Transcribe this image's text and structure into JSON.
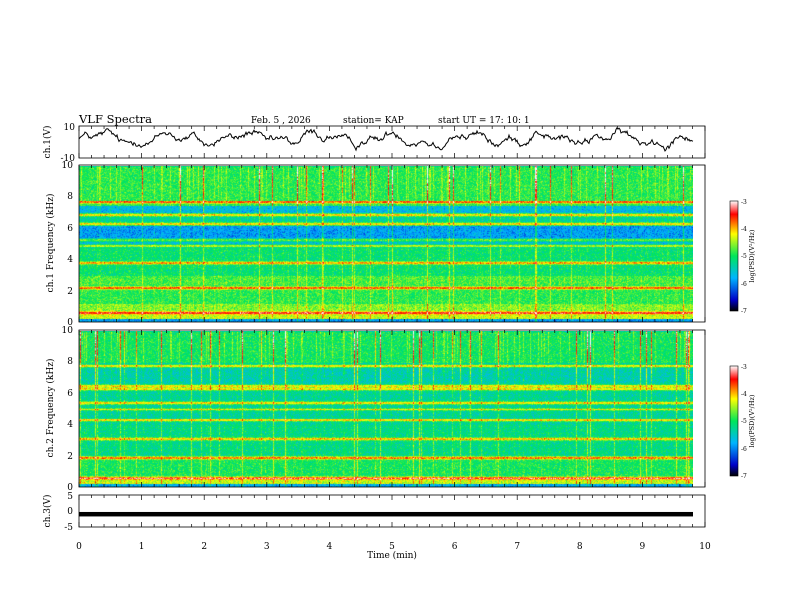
{
  "header": {
    "title": "VLF Spectra",
    "date": "Feb. 5 , 2026",
    "station": "station= KAP",
    "start_ut": "start UT =  17: 10: 1"
  },
  "chart_data": [
    {
      "type": "line",
      "panel": "ch1-waveform",
      "ylabel": "ch.1(V)",
      "ylim": [
        -10,
        10
      ],
      "yticks": [
        "10",
        "-10"
      ],
      "xlim": [
        0,
        10
      ],
      "series": [
        {
          "name": "ch.1",
          "mean": 2,
          "amplitude": 5.5
        }
      ]
    },
    {
      "type": "heatmap",
      "panel": "ch1-spectrogram",
      "ylabel": "ch.1 Frequency (kHz)",
      "ylim": [
        0,
        10
      ],
      "yticks": [
        "0",
        "2",
        "4",
        "6",
        "8",
        "10"
      ],
      "xlim": [
        0,
        9.85
      ],
      "base_level": -5.2,
      "bands": [
        {
          "f0": 0.0,
          "f1": 0.2,
          "level": -5.9
        },
        {
          "f0": 0.2,
          "f1": 0.5,
          "level": -4.4
        },
        {
          "f0": 0.5,
          "f1": 1.2,
          "level": -4.6
        },
        {
          "f0": 1.2,
          "f1": 2.4,
          "level": -4.9
        },
        {
          "f0": 2.4,
          "f1": 3.0,
          "level": -4.8
        },
        {
          "f0": 3.0,
          "f1": 4.8,
          "level": -5.1
        },
        {
          "f0": 4.8,
          "f1": 5.2,
          "level": -5.6
        },
        {
          "f0": 5.2,
          "f1": 6.2,
          "level": -5.9
        },
        {
          "f0": 6.2,
          "f1": 7.0,
          "level": -5.3
        },
        {
          "f0": 7.0,
          "f1": 7.5,
          "level": -5.7
        },
        {
          "f0": 7.5,
          "f1": 10.0,
          "level": -4.9
        }
      ],
      "lines_khz": [
        0.6,
        2.2,
        3.8,
        4.9,
        5.3,
        6.3,
        6.9,
        7.7
      ]
    },
    {
      "type": "heatmap",
      "panel": "ch2-spectrogram",
      "ylabel": "ch.2 Frequency (kHz)",
      "ylim": [
        0,
        10
      ],
      "yticks": [
        "0",
        "2",
        "4",
        "6",
        "8",
        "10"
      ],
      "xlim": [
        0,
        9.85
      ],
      "base_level": -5.3,
      "bands": [
        {
          "f0": 0.0,
          "f1": 0.25,
          "level": -5.8
        },
        {
          "f0": 0.25,
          "f1": 0.6,
          "level": -4.4
        },
        {
          "f0": 0.6,
          "f1": 2.0,
          "level": -5.0
        },
        {
          "f0": 2.0,
          "f1": 4.0,
          "level": -5.2
        },
        {
          "f0": 4.0,
          "f1": 6.5,
          "level": -5.3
        },
        {
          "f0": 6.5,
          "f1": 8.0,
          "level": -5.4
        },
        {
          "f0": 8.0,
          "f1": 10.0,
          "level": -5.0
        }
      ],
      "lines_khz": [
        0.6,
        1.9,
        3.1,
        4.3,
        5.0,
        5.4,
        6.3,
        6.5,
        7.8
      ]
    },
    {
      "type": "line",
      "panel": "ch3-waveform",
      "ylabel": "ch.3(V)",
      "ylim": [
        -5,
        5
      ],
      "yticks": [
        "5",
        "0",
        "-5"
      ],
      "xlim": [
        0,
        10
      ],
      "series": [
        {
          "name": "ch.3",
          "mean": -1.0,
          "amplitude": 0.7
        }
      ]
    }
  ],
  "xaxis": {
    "label": "Time (min)",
    "ticks": [
      "0",
      "1",
      "2",
      "3",
      "4",
      "5",
      "6",
      "7",
      "8",
      "9",
      "10"
    ],
    "xlim": [
      0,
      10
    ]
  },
  "colorbar": {
    "label": "log(PSD)(V²/Hz)",
    "range": [
      -7,
      -3
    ],
    "ticks": [
      "-3",
      "-4",
      "-5",
      "-6",
      "-7"
    ]
  }
}
